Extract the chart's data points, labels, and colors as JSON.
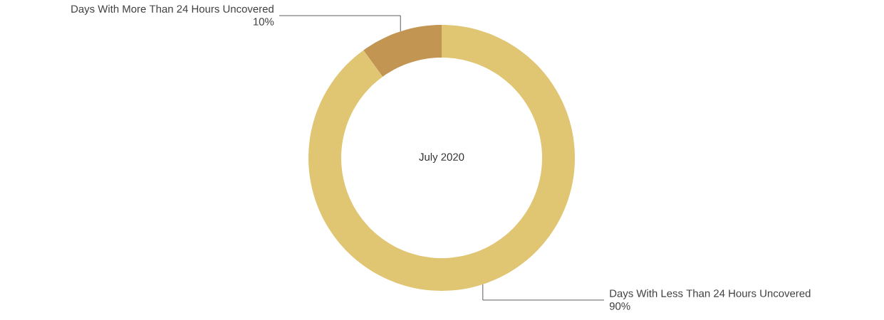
{
  "chart_data": {
    "type": "donut",
    "title": "July 2020",
    "categories": [
      "Days With More Than 24 Hours Uncovered",
      "Days With Less Than 24 Hours Uncovered"
    ],
    "values": [
      10,
      90
    ],
    "colors": [
      "#c39552",
      "#e0c572"
    ],
    "value_labels": [
      "10%",
      "90%"
    ]
  }
}
